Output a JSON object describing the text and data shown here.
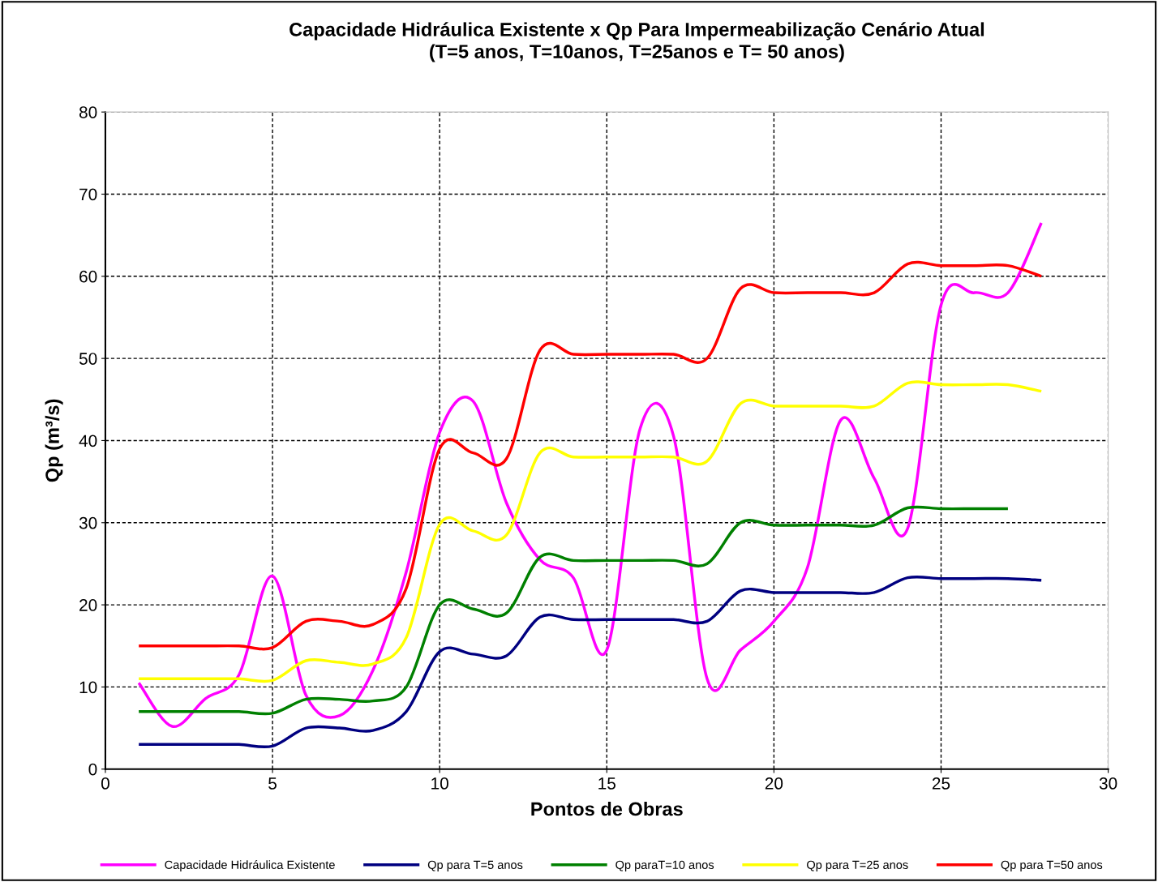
{
  "chart_data": {
    "type": "line",
    "title": "Capacidade Hidráulica Existente x Qp Para Impermeabilização Cenário Atual\n(T=5 anos, T=10anos, T=25anos e T= 50 anos)",
    "xlabel": "Pontos de Obras",
    "ylabel": "Qp (m³/s)",
    "x": [
      1,
      2,
      3,
      4,
      5,
      6,
      7,
      8,
      9,
      10,
      11,
      12,
      13,
      14,
      15,
      16,
      17,
      18,
      19,
      20,
      21,
      22,
      23,
      24,
      25,
      26,
      27,
      28
    ],
    "series": [
      {
        "name": "Capacidade Hidráulica Existente",
        "color": "#ff00ff",
        "values": [
          10.5,
          5.2,
          8.6,
          11.5,
          23.5,
          9,
          6.5,
          12,
          24,
          41,
          44.8,
          32.4,
          25.5,
          23.3,
          14.5,
          41.5,
          40.5,
          11,
          14.5,
          18,
          24.5,
          42.5,
          35.4,
          29.3,
          56.5,
          58,
          58,
          66.5
        ]
      },
      {
        "name": "Qp para T=5 anos",
        "color": "#000080",
        "values": [
          3,
          3,
          3,
          3,
          2.8,
          5,
          5,
          4.7,
          7,
          14.3,
          14,
          13.8,
          18.5,
          18.2,
          18.2,
          18.2,
          18.2,
          18,
          21.7,
          21.5,
          21.5,
          21.5,
          21.5,
          23.3,
          23.2,
          23.2,
          23.2,
          23
        ]
      },
      {
        "name": "Qp paraT=10 anos",
        "color": "#008000",
        "values": [
          7,
          7,
          7,
          7,
          6.8,
          8.5,
          8.5,
          8.3,
          10,
          20,
          19.5,
          19,
          25.8,
          25.4,
          25.4,
          25.4,
          25.4,
          25,
          30,
          29.7,
          29.7,
          29.7,
          29.7,
          31.8,
          31.7,
          31.7,
          31.7,
          null
        ]
      },
      {
        "name": "Qp para T=25 anos",
        "color": "#ffff00",
        "values": [
          11,
          11,
          11,
          11,
          10.8,
          13.2,
          13,
          12.8,
          16,
          29.8,
          29,
          28.5,
          38.5,
          38,
          38,
          38,
          38,
          37.5,
          44.5,
          44.2,
          44.2,
          44.2,
          44.2,
          47,
          46.8,
          46.8,
          46.8,
          46
        ]
      },
      {
        "name": "Qp para T=50 anos",
        "color": "#ff0000",
        "values": [
          15,
          15,
          15,
          15,
          14.8,
          18,
          18,
          17.6,
          22,
          39,
          38.5,
          37.8,
          51,
          50.5,
          50.5,
          50.5,
          50.5,
          50,
          58.5,
          58,
          58,
          58,
          58,
          61.5,
          61.3,
          61.3,
          61.3,
          60
        ]
      }
    ],
    "xlim": [
      0,
      30
    ],
    "xticks": [
      0,
      5,
      10,
      15,
      20,
      25,
      30
    ],
    "ylim": [
      0,
      80
    ],
    "yticks": [
      0,
      10,
      20,
      30,
      40,
      50,
      60,
      70,
      80
    ],
    "grid": true,
    "legend": "bottom",
    "line_style": "solid",
    "marker": "none"
  }
}
